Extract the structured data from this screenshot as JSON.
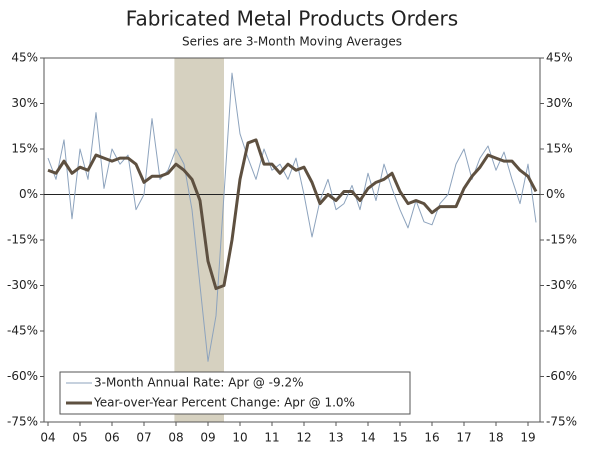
{
  "chart_data": {
    "type": "line",
    "title": "Fabricated Metal Products Orders",
    "subtitle": "Series are 3-Month Moving Averages",
    "x": [
      2004,
      2004.25,
      2004.5,
      2004.75,
      2005,
      2005.25,
      2005.5,
      2005.75,
      2006,
      2006.25,
      2006.5,
      2006.75,
      2007,
      2007.25,
      2007.5,
      2007.75,
      2008,
      2008.25,
      2008.5,
      2008.75,
      2009,
      2009.25,
      2009.5,
      2009.75,
      2010,
      2010.25,
      2010.5,
      2010.75,
      2011,
      2011.25,
      2011.5,
      2011.75,
      2012,
      2012.25,
      2012.5,
      2012.75,
      2013,
      2013.25,
      2013.5,
      2013.75,
      2014,
      2014.25,
      2014.5,
      2014.75,
      2015,
      2015.25,
      2015.5,
      2015.75,
      2016,
      2016.25,
      2016.5,
      2016.75,
      2017,
      2017.25,
      2017.5,
      2017.75,
      2018,
      2018.25,
      2018.5,
      2018.75,
      2019,
      2019.25
    ],
    "series": [
      {
        "name": "3-Month Annual Rate: Apr @ -9.2%",
        "color": "#8da3bd",
        "width": 1,
        "values": [
          12,
          5,
          18,
          -8,
          15,
          5,
          27,
          2,
          15,
          10,
          13,
          -5,
          0,
          25,
          5,
          8,
          15,
          10,
          -5,
          -30,
          -55,
          -40,
          0,
          40,
          20,
          12,
          5,
          15,
          8,
          10,
          5,
          12,
          0,
          -14,
          -2,
          5,
          -5,
          -3,
          3,
          -5,
          7,
          -2,
          10,
          2,
          -5,
          -11,
          -2,
          -9,
          -10,
          -3,
          0,
          10,
          15,
          5,
          12,
          16,
          8,
          14,
          5,
          -3,
          10,
          -9.2
        ]
      },
      {
        "name": "Year-over-Year Percent Change: Apr @ 1.0%",
        "color": "#5e5040",
        "width": 3,
        "values": [
          8,
          7,
          11,
          7,
          9,
          8,
          13,
          12,
          11,
          12,
          12,
          10,
          4,
          6,
          6,
          7,
          10,
          8,
          5,
          -2,
          -22,
          -31,
          -30,
          -15,
          5,
          17,
          18,
          10,
          10,
          7,
          10,
          8,
          9,
          4,
          -3,
          0,
          -2,
          1,
          1,
          -2,
          2,
          4,
          5,
          7,
          1,
          -3,
          -2,
          -3,
          -6,
          -4,
          -4,
          -4,
          2,
          6,
          9,
          13,
          12,
          11,
          11,
          8,
          6,
          1
        ]
      }
    ],
    "xlim": [
      2003.875,
      2019.375
    ],
    "xticks": [
      {
        "value": 2004,
        "label": "04"
      },
      {
        "value": 2005,
        "label": "05"
      },
      {
        "value": 2006,
        "label": "06"
      },
      {
        "value": 2007,
        "label": "07"
      },
      {
        "value": 2008,
        "label": "08"
      },
      {
        "value": 2009,
        "label": "09"
      },
      {
        "value": 2010,
        "label": "10"
      },
      {
        "value": 2011,
        "label": "11"
      },
      {
        "value": 2012,
        "label": "12"
      },
      {
        "value": 2013,
        "label": "13"
      },
      {
        "value": 2014,
        "label": "14"
      },
      {
        "value": 2015,
        "label": "15"
      },
      {
        "value": 2016,
        "label": "16"
      },
      {
        "value": 2017,
        "label": "17"
      },
      {
        "value": 2018,
        "label": "18"
      },
      {
        "value": 2019,
        "label": "19"
      }
    ],
    "ylim": [
      -75,
      45
    ],
    "yticks": [
      {
        "value": -75,
        "label": "-75%"
      },
      {
        "value": -60,
        "label": "-60%"
      },
      {
        "value": -45,
        "label": "-45%"
      },
      {
        "value": -30,
        "label": "-30%"
      },
      {
        "value": -15,
        "label": "-15%"
      },
      {
        "value": 0,
        "label": "0%"
      },
      {
        "value": 15,
        "label": "15%"
      },
      {
        "value": 30,
        "label": "30%"
      },
      {
        "value": 45,
        "label": "45%"
      }
    ],
    "shaded_regions": [
      [
        2007.95,
        2009.5
      ]
    ],
    "shade_color": "#d6d1c0",
    "zero_line": true
  }
}
